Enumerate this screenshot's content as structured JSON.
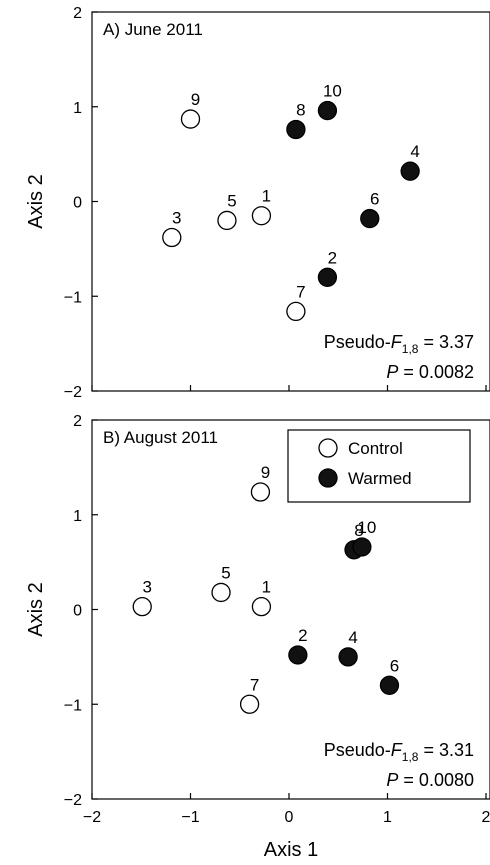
{
  "chart_data": [
    {
      "type": "scatter",
      "title": "A) June 2011",
      "xlabel": "",
      "ylabel": "Axis 2",
      "xlim": [
        -2,
        2
      ],
      "ylim": [
        -2,
        2
      ],
      "x_ticks": [],
      "y_ticks": [
        "2",
        "1",
        "0",
        "−1",
        "−2"
      ],
      "y_tick_values": [
        2,
        1,
        0,
        -1,
        -2
      ],
      "grid": false,
      "series": [
        {
          "name": "Control",
          "filled": false,
          "points": [
            {
              "label": "9",
              "x": -1.0,
              "y": 0.87
            },
            {
              "label": "3",
              "x": -1.19,
              "y": -0.38
            },
            {
              "label": "5",
              "x": -0.63,
              "y": -0.2
            },
            {
              "label": "1",
              "x": -0.28,
              "y": -0.15
            },
            {
              "label": "7",
              "x": 0.07,
              "y": -1.16
            }
          ]
        },
        {
          "name": "Warmed",
          "filled": true,
          "points": [
            {
              "label": "10",
              "x": 0.39,
              "y": 0.96
            },
            {
              "label": "8",
              "x": 0.07,
              "y": 0.76
            },
            {
              "label": "4",
              "x": 1.23,
              "y": 0.32
            },
            {
              "label": "6",
              "x": 0.82,
              "y": -0.18
            },
            {
              "label": "2",
              "x": 0.39,
              "y": -0.8
            }
          ]
        }
      ],
      "annotation": {
        "stat_prefix": "Pseudo-",
        "stat_var": "F",
        "stat_sub": "1,8",
        "stat_value": " = 3.37",
        "p_var": "P",
        "p_value": " = 0.0082"
      }
    },
    {
      "type": "scatter",
      "title": "B) August 2011",
      "xlabel": "Axis 1",
      "ylabel": "Axis 2",
      "xlim": [
        -2,
        2
      ],
      "ylim": [
        -2,
        2
      ],
      "x_ticks": [
        "−2",
        "−1",
        "0",
        "1",
        "2"
      ],
      "x_tick_values": [
        -2,
        -1,
        0,
        1,
        2
      ],
      "y_ticks": [
        "2",
        "1",
        "0",
        "−1",
        "−2"
      ],
      "y_tick_values": [
        2,
        1,
        0,
        -1,
        -2
      ],
      "grid": false,
      "legend": {
        "position": "top-right",
        "entries": [
          "Control",
          "Warmed"
        ]
      },
      "series": [
        {
          "name": "Control",
          "filled": false,
          "points": [
            {
              "label": "9",
              "x": -0.29,
              "y": 1.24
            },
            {
              "label": "3",
              "x": -1.49,
              "y": 0.03
            },
            {
              "label": "5",
              "x": -0.69,
              "y": 0.18
            },
            {
              "label": "1",
              "x": -0.28,
              "y": 0.03
            },
            {
              "label": "7",
              "x": -0.4,
              "y": -1.0
            }
          ]
        },
        {
          "name": "Warmed",
          "filled": true,
          "points": [
            {
              "label": "8",
              "x": 0.66,
              "y": 0.63
            },
            {
              "label": "10",
              "x": 0.74,
              "y": 0.66
            },
            {
              "label": "2",
              "x": 0.09,
              "y": -0.48
            },
            {
              "label": "4",
              "x": 0.6,
              "y": -0.5
            },
            {
              "label": "6",
              "x": 1.02,
              "y": -0.8
            }
          ]
        }
      ],
      "annotation": {
        "stat_prefix": "Pseudo-",
        "stat_var": "F",
        "stat_sub": "1,8",
        "stat_value": " = 3.31",
        "p_var": "P",
        "p_value": " = 0.0080"
      }
    }
  ]
}
